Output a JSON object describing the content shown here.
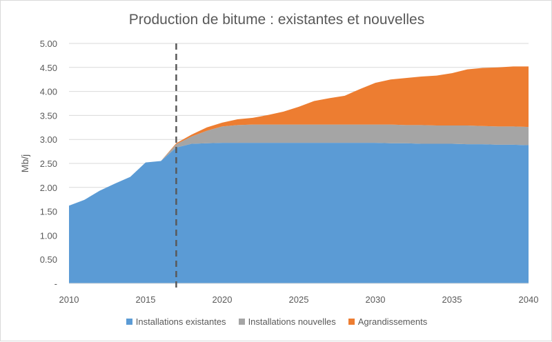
{
  "chart_data": {
    "type": "area",
    "stacked": true,
    "title": "Production de bitume : existantes et nouvelles",
    "xlabel": "",
    "ylabel": "Mb/j",
    "xlim": [
      2010,
      2040
    ],
    "ylim": [
      0,
      5
    ],
    "x_ticks": [
      "2010",
      "2015",
      "2020",
      "2025",
      "2030",
      "2035",
      "2040"
    ],
    "y_ticks": [
      "-",
      "0.50",
      "1.00",
      "1.50",
      "2.00",
      "2.50",
      "3.00",
      "3.50",
      "4.00",
      "4.50",
      "5.00"
    ],
    "grid": "horizontal",
    "legend": "bottom",
    "vertical_marker_x": 2017,
    "x": [
      2010,
      2011,
      2012,
      2013,
      2014,
      2015,
      2016,
      2017,
      2018,
      2019,
      2020,
      2021,
      2022,
      2023,
      2024,
      2025,
      2026,
      2027,
      2028,
      2029,
      2030,
      2031,
      2032,
      2033,
      2034,
      2035,
      2036,
      2037,
      2038,
      2039,
      2040
    ],
    "series": [
      {
        "name": "Installations existantes",
        "color": "#5b9bd5",
        "values": [
          1.62,
          1.74,
          1.93,
          2.08,
          2.22,
          2.52,
          2.55,
          2.83,
          2.91,
          2.92,
          2.93,
          2.93,
          2.93,
          2.93,
          2.93,
          2.93,
          2.93,
          2.93,
          2.93,
          2.93,
          2.93,
          2.92,
          2.92,
          2.91,
          2.91,
          2.91,
          2.9,
          2.9,
          2.89,
          2.89,
          2.88
        ]
      },
      {
        "name": "Installations nouvelles",
        "color": "#a5a5a5",
        "values": [
          0,
          0,
          0,
          0,
          0,
          0,
          0,
          0.07,
          0.15,
          0.26,
          0.34,
          0.37,
          0.38,
          0.38,
          0.38,
          0.38,
          0.38,
          0.38,
          0.38,
          0.38,
          0.38,
          0.39,
          0.38,
          0.39,
          0.38,
          0.38,
          0.39,
          0.38,
          0.38,
          0.38,
          0.38
        ]
      },
      {
        "name": "Agrandissements",
        "color": "#ed7d31",
        "values": [
          0,
          0,
          0,
          0,
          0,
          0,
          0,
          0.02,
          0.04,
          0.07,
          0.08,
          0.12,
          0.14,
          0.2,
          0.27,
          0.37,
          0.49,
          0.55,
          0.6,
          0.74,
          0.87,
          0.94,
          0.98,
          1.01,
          1.04,
          1.09,
          1.17,
          1.21,
          1.23,
          1.25,
          1.26
        ]
      }
    ]
  }
}
